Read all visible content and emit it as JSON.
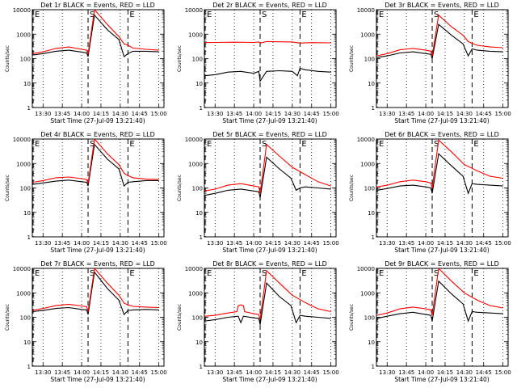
{
  "chart_data": [
    {
      "type": "line",
      "title": "Det 1r BLACK = Events, RED = LLD",
      "ylabel": "Counts/sec",
      "xlabel": "Start Time (27-Jul-09 13:21:40)",
      "x_ticks": [
        "13:30",
        "13:45",
        "14:00",
        "14:15",
        "14:30",
        "14:45",
        "15:00"
      ],
      "y_ticks": [
        "1",
        "10",
        "100",
        "1000",
        "10000"
      ],
      "ylim": [
        1,
        10000
      ],
      "yscale": "log",
      "markers": [
        {
          "label": "E",
          "time": "13:21"
        },
        {
          "label": "S",
          "time": "14:05"
        },
        {
          "label": "E",
          "time": "14:36"
        }
      ],
      "series": [
        {
          "name": "BLACK",
          "color": "#000000",
          "x": [
            "13:22",
            "13:30",
            "13:40",
            "13:50",
            "14:00",
            "14:04",
            "14:05",
            "14:10",
            "14:20",
            "14:29",
            "14:33",
            "14:36",
            "14:37",
            "14:40",
            "14:50",
            "15:00"
          ],
          "values": [
            140,
            160,
            200,
            220,
            185,
            170,
            120,
            6000,
            1500,
            600,
            120,
            160,
            170,
            200,
            200,
            190
          ]
        },
        {
          "name": "RED",
          "color": "#ff0000",
          "x": [
            "13:22",
            "13:30",
            "13:40",
            "13:50",
            "14:00",
            "14:04",
            "14:05",
            "14:10",
            "14:20",
            "14:29",
            "14:33",
            "14:36",
            "14:40",
            "14:50",
            "15:00"
          ],
          "values": [
            160,
            190,
            260,
            300,
            240,
            220,
            150,
            10000,
            2500,
            800,
            400,
            350,
            270,
            240,
            220
          ]
        }
      ]
    },
    {
      "type": "line",
      "title": "Det 2r BLACK = Events, RED = LLD",
      "ylabel": "Counts/sec",
      "xlabel": "Start Time (27-Jul-09 13:21:40)",
      "x_ticks": [
        "13:30",
        "13:45",
        "14:00",
        "14:15",
        "14:30",
        "14:45",
        "15:00"
      ],
      "y_ticks": [
        "1",
        "10",
        "100",
        "1000",
        "10000"
      ],
      "ylim": [
        1,
        10000
      ],
      "yscale": "log",
      "markers": [
        {
          "label": "E",
          "time": "13:21"
        },
        {
          "label": "S",
          "time": "14:05"
        },
        {
          "label": "E",
          "time": "14:36"
        }
      ],
      "series": [
        {
          "name": "BLACK",
          "color": "#000000",
          "x": [
            "13:22",
            "13:30",
            "13:40",
            "13:50",
            "14:00",
            "14:04",
            "14:05",
            "14:10",
            "14:20",
            "14:30",
            "14:34",
            "14:36",
            "14:40",
            "14:50",
            "15:00"
          ],
          "values": [
            20,
            22,
            28,
            30,
            25,
            30,
            12,
            30,
            32,
            30,
            20,
            40,
            35,
            30,
            28
          ]
        },
        {
          "name": "RED",
          "color": "#ff0000",
          "x": [
            "13:22",
            "13:30",
            "13:45",
            "14:00",
            "14:04",
            "14:05",
            "14:10",
            "14:30",
            "14:36",
            "14:45",
            "15:00"
          ],
          "values": [
            450,
            460,
            470,
            460,
            480,
            430,
            500,
            480,
            430,
            450,
            440
          ]
        }
      ]
    },
    {
      "type": "line",
      "title": "Det 3r BLACK = Events, RED = LLD",
      "ylabel": "Counts/sec",
      "xlabel": "Start Time (27-Jul-09 13:21:40)",
      "x_ticks": [
        "13:30",
        "13:45",
        "14:00",
        "14:15",
        "14:30",
        "14:45",
        "15:00"
      ],
      "y_ticks": [
        "1",
        "10",
        "100",
        "1000",
        "10000"
      ],
      "ylim": [
        1,
        10000
      ],
      "yscale": "log",
      "markers": [
        {
          "label": "E",
          "time": "13:21"
        },
        {
          "label": "S",
          "time": "14:05"
        },
        {
          "label": "E",
          "time": "14:36"
        }
      ],
      "series": [
        {
          "name": "BLACK",
          "color": "#000000",
          "x": [
            "13:22",
            "13:30",
            "13:40",
            "13:50",
            "14:00",
            "14:04",
            "14:05",
            "14:10",
            "14:20",
            "14:29",
            "14:33",
            "14:36",
            "14:40",
            "14:50",
            "15:00"
          ],
          "values": [
            110,
            130,
            170,
            190,
            160,
            150,
            100,
            2500,
            900,
            400,
            130,
            250,
            220,
            200,
            190
          ]
        },
        {
          "name": "RED",
          "color": "#ff0000",
          "x": [
            "13:22",
            "13:30",
            "13:40",
            "13:50",
            "14:00",
            "14:04",
            "14:05",
            "14:10",
            "14:20",
            "14:29",
            "14:33",
            "14:36",
            "14:40",
            "14:50",
            "15:00"
          ],
          "values": [
            130,
            160,
            230,
            260,
            220,
            200,
            130,
            6000,
            2000,
            900,
            500,
            420,
            350,
            300,
            280
          ]
        }
      ]
    },
    {
      "type": "line",
      "title": "Det 4r BLACK = Events, RED = LLD",
      "ylabel": "Counts/sec",
      "xlabel": "Start Time (27-Jul-09 13:21:40)",
      "x_ticks": [
        "13:30",
        "13:45",
        "14:00",
        "14:15",
        "14:30",
        "14:45",
        "15:00"
      ],
      "y_ticks": [
        "1",
        "10",
        "100",
        "1000",
        "10000"
      ],
      "ylim": [
        1,
        10000
      ],
      "yscale": "log",
      "markers": [
        {
          "label": "E",
          "time": "13:21"
        },
        {
          "label": "S",
          "time": "14:05"
        },
        {
          "label": "E",
          "time": "14:36"
        }
      ],
      "series": [
        {
          "name": "BLACK",
          "color": "#000000",
          "x": [
            "13:22",
            "13:30",
            "13:40",
            "13:50",
            "14:00",
            "14:04",
            "14:05",
            "14:10",
            "14:20",
            "14:29",
            "14:33",
            "14:36",
            "14:40",
            "14:50",
            "15:00"
          ],
          "values": [
            140,
            160,
            190,
            210,
            180,
            170,
            120,
            6000,
            1500,
            600,
            120,
            170,
            180,
            200,
            200
          ]
        },
        {
          "name": "RED",
          "color": "#ff0000",
          "x": [
            "13:22",
            "13:30",
            "13:40",
            "13:50",
            "14:00",
            "14:04",
            "14:05",
            "14:10",
            "14:20",
            "14:29",
            "14:33",
            "14:36",
            "14:40",
            "14:50",
            "15:00"
          ],
          "values": [
            170,
            200,
            260,
            280,
            240,
            220,
            150,
            10000,
            2500,
            900,
            400,
            320,
            260,
            230,
            220
          ]
        }
      ]
    },
    {
      "type": "line",
      "title": "Det 5r BLACK = Events, RED = LLD",
      "ylabel": "Counts/sec",
      "xlabel": "Start Time (27-Jul-09 13:21:40)",
      "x_ticks": [
        "13:30",
        "13:45",
        "14:00",
        "14:15",
        "14:30",
        "14:45",
        "15:00"
      ],
      "y_ticks": [
        "1",
        "10",
        "100",
        "1000",
        "10000"
      ],
      "ylim": [
        1,
        10000
      ],
      "yscale": "log",
      "markers": [
        {
          "label": "E",
          "time": "13:21"
        },
        {
          "label": "S",
          "time": "14:05"
        },
        {
          "label": "E",
          "time": "14:36"
        }
      ],
      "series": [
        {
          "name": "BLACK",
          "color": "#000000",
          "x": [
            "13:22",
            "13:30",
            "13:40",
            "13:50",
            "14:00",
            "14:04",
            "14:05",
            "14:10",
            "14:20",
            "14:29",
            "14:33",
            "14:36",
            "14:40",
            "14:50",
            "15:00"
          ],
          "values": [
            50,
            60,
            80,
            90,
            75,
            70,
            40,
            1800,
            600,
            250,
            80,
            100,
            110,
            100,
            90
          ]
        },
        {
          "name": "RED",
          "color": "#ff0000",
          "x": [
            "13:22",
            "13:30",
            "13:40",
            "13:50",
            "14:00",
            "14:04",
            "14:05",
            "14:10",
            "14:20",
            "14:30",
            "14:40",
            "14:50",
            "15:00"
          ],
          "values": [
            75,
            90,
            130,
            150,
            120,
            110,
            60,
            6000,
            2000,
            700,
            350,
            180,
            120
          ]
        }
      ]
    },
    {
      "type": "line",
      "title": "Det 6r BLACK = Events, RED = LLD",
      "ylabel": "Counts/sec",
      "xlabel": "Start Time (27-Jul-09 13:21:40)",
      "x_ticks": [
        "13:30",
        "13:45",
        "14:00",
        "14:15",
        "14:30",
        "14:45",
        "15:00"
      ],
      "y_ticks": [
        "1",
        "10",
        "100",
        "1000",
        "10000"
      ],
      "ylim": [
        1,
        10000
      ],
      "yscale": "log",
      "markers": [
        {
          "label": "E",
          "time": "13:21"
        },
        {
          "label": "S",
          "time": "14:05"
        },
        {
          "label": "E",
          "time": "14:36"
        }
      ],
      "series": [
        {
          "name": "BLACK",
          "color": "#000000",
          "x": [
            "13:22",
            "13:30",
            "13:40",
            "13:50",
            "14:00",
            "14:04",
            "14:05",
            "14:10",
            "14:20",
            "14:29",
            "14:33",
            "14:36",
            "14:40",
            "14:50",
            "15:00"
          ],
          "values": [
            80,
            95,
            120,
            130,
            110,
            100,
            60,
            2500,
            800,
            300,
            60,
            150,
            140,
            130,
            120
          ]
        },
        {
          "name": "RED",
          "color": "#ff0000",
          "x": [
            "13:22",
            "13:30",
            "13:40",
            "13:50",
            "14:00",
            "14:04",
            "14:05",
            "14:10",
            "14:20",
            "14:30",
            "14:40",
            "14:50",
            "15:00"
          ],
          "values": [
            110,
            130,
            180,
            210,
            180,
            160,
            100,
            9000,
            3000,
            900,
            500,
            300,
            250
          ]
        }
      ]
    },
    {
      "type": "line",
      "title": "Det 7r BLACK = Events, RED = LLD",
      "ylabel": "Counts/sec",
      "xlabel": "Start Time (27-Jul-09 13:21:40)",
      "x_ticks": [
        "13:30",
        "13:45",
        "14:00",
        "14:15",
        "14:30",
        "14:45",
        "15:00"
      ],
      "y_ticks": [
        "1",
        "10",
        "100",
        "1000",
        "10000"
      ],
      "ylim": [
        1,
        10000
      ],
      "yscale": "log",
      "markers": [
        {
          "label": "E",
          "time": "13:21"
        },
        {
          "label": "S",
          "time": "14:05"
        },
        {
          "label": "E",
          "time": "14:36"
        }
      ],
      "series": [
        {
          "name": "BLACK",
          "color": "#000000",
          "x": [
            "13:22",
            "13:30",
            "13:40",
            "13:50",
            "14:00",
            "14:04",
            "14:05",
            "14:10",
            "14:20",
            "14:29",
            "14:33",
            "14:36",
            "14:40",
            "14:50",
            "15:00"
          ],
          "values": [
            170,
            190,
            230,
            250,
            210,
            200,
            130,
            7000,
            1500,
            500,
            130,
            190,
            200,
            210,
            200
          ]
        },
        {
          "name": "RED",
          "color": "#ff0000",
          "x": [
            "13:22",
            "13:30",
            "13:40",
            "13:50",
            "14:00",
            "14:04",
            "14:05",
            "14:10",
            "14:20",
            "14:29",
            "14:33",
            "14:36",
            "14:40",
            "14:50",
            "15:00"
          ],
          "values": [
            190,
            230,
            300,
            340,
            290,
            270,
            170,
            10000,
            2500,
            800,
            380,
            320,
            280,
            260,
            250
          ]
        }
      ]
    },
    {
      "type": "line",
      "title": "Det 8r BLACK = Events, RED = LLD",
      "ylabel": "Counts/sec",
      "xlabel": "Start Time (27-Jul-09 13:21:40)",
      "x_ticks": [
        "13:30",
        "13:45",
        "14:00",
        "14:15",
        "14:30",
        "14:45",
        "15:00"
      ],
      "y_ticks": [
        "1",
        "10",
        "100",
        "1000",
        "10000"
      ],
      "ylim": [
        1,
        10000
      ],
      "yscale": "log",
      "markers": [
        {
          "label": "E",
          "time": "13:21"
        },
        {
          "label": "S",
          "time": "14:05"
        },
        {
          "label": "E",
          "time": "14:36"
        }
      ],
      "series": [
        {
          "name": "BLACK",
          "color": "#000000",
          "x": [
            "13:22",
            "13:30",
            "13:40",
            "13:48",
            "13:50",
            "13:52",
            "14:00",
            "14:04",
            "14:05",
            "14:10",
            "14:20",
            "14:29",
            "14:33",
            "14:36",
            "14:40",
            "14:50",
            "15:00"
          ],
          "values": [
            70,
            80,
            100,
            110,
            60,
            110,
            95,
            90,
            50,
            2500,
            700,
            300,
            60,
            120,
            110,
            100,
            90
          ]
        },
        {
          "name": "RED",
          "color": "#ff0000",
          "x": [
            "13:22",
            "13:30",
            "13:40",
            "13:47",
            "13:48",
            "13:50",
            "13:52",
            "13:53",
            "14:00",
            "14:04",
            "14:05",
            "14:10",
            "14:20",
            "14:30",
            "14:40",
            "14:50",
            "15:00"
          ],
          "values": [
            110,
            120,
            150,
            170,
            300,
            320,
            300,
            170,
            140,
            130,
            80,
            8000,
            2500,
            800,
            400,
            220,
            170
          ]
        }
      ]
    },
    {
      "type": "line",
      "title": "Det 9r BLACK = Events, RED = LLD",
      "ylabel": "Counts/sec",
      "xlabel": "Start Time (27-Jul-09 13:21:40)",
      "x_ticks": [
        "13:30",
        "13:45",
        "14:00",
        "14:15",
        "14:30",
        "14:45",
        "15:00"
      ],
      "y_ticks": [
        "1",
        "10",
        "100",
        "1000",
        "10000"
      ],
      "ylim": [
        1,
        10000
      ],
      "yscale": "log",
      "markers": [
        {
          "label": "E",
          "time": "13:21"
        },
        {
          "label": "S",
          "time": "14:05"
        },
        {
          "label": "E",
          "time": "14:36"
        }
      ],
      "series": [
        {
          "name": "BLACK",
          "color": "#000000",
          "x": [
            "13:22",
            "13:30",
            "13:40",
            "13:50",
            "14:00",
            "14:04",
            "14:05",
            "14:10",
            "14:20",
            "14:29",
            "14:33",
            "14:36",
            "14:40",
            "14:50",
            "15:00"
          ],
          "values": [
            90,
            110,
            140,
            160,
            130,
            120,
            70,
            3000,
            900,
            350,
            70,
            170,
            160,
            150,
            140
          ]
        },
        {
          "name": "RED",
          "color": "#ff0000",
          "x": [
            "13:22",
            "13:30",
            "13:40",
            "13:50",
            "14:00",
            "14:04",
            "14:05",
            "14:10",
            "14:20",
            "14:30",
            "14:40",
            "14:50",
            "15:00"
          ],
          "values": [
            120,
            150,
            220,
            260,
            220,
            200,
            120,
            10000,
            3000,
            1000,
            500,
            300,
            240
          ]
        }
      ]
    }
  ]
}
